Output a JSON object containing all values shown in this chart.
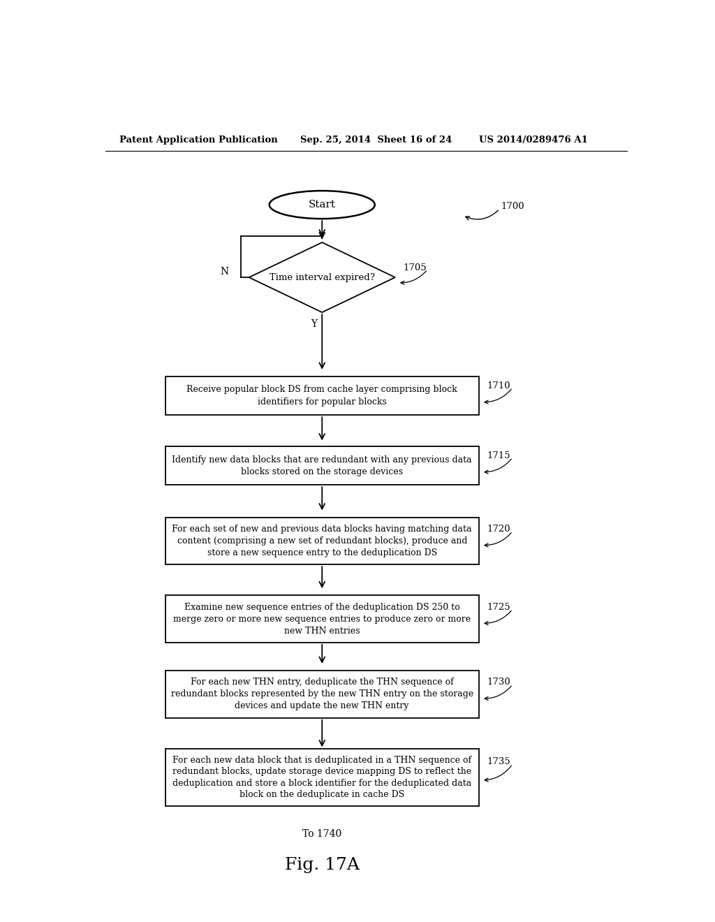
{
  "header_left": "Patent Application Publication",
  "header_mid": "Sep. 25, 2014  Sheet 16 of 24",
  "header_right": "US 2014/0289476 A1",
  "figure_label": "Fig. 17A",
  "ref_1700": "1700",
  "ref_1705": "1705",
  "ref_1710": "1710",
  "ref_1715": "1715",
  "ref_1720": "1720",
  "ref_1725": "1725",
  "ref_1730": "1730",
  "ref_1735": "1735",
  "start_text": "Start",
  "diamond_text": "Time interval expired?",
  "box1_text": "Receive popular block DS from cache layer comprising block\nidentifiers for popular blocks",
  "box2_text": "Identify new data blocks that are redundant with any previous data\nblocks stored on the storage devices",
  "box3_text": "For each set of new and previous data blocks having matching data\ncontent (comprising a new set of redundant blocks), produce and\nstore a new sequence entry to the deduplication DS",
  "box4_text": "Examine new sequence entries of the deduplication DS 250 to\nmerge zero or more new sequence entries to produce zero or more\nnew THN entries",
  "box5_text": "For each new THN entry, deduplicate the THN sequence of\nredundant blocks represented by the new THN entry on the storage\ndevices and update the new THN entry",
  "box6_text": "For each new data block that is deduplicated in a THN sequence of\nredundant blocks, update storage device mapping DS to reflect the\ndeduplication and store a block identifier for the deduplicated data\nblock on the deduplicate in cache DS",
  "bottom_text": "To 1740",
  "N_label": "N",
  "Y_label": "Y",
  "bg_color": "#ffffff",
  "line_color": "#000000",
  "text_color": "#000000",
  "font_size_header": 9.5,
  "font_size_body": 9,
  "font_size_fig": 18
}
